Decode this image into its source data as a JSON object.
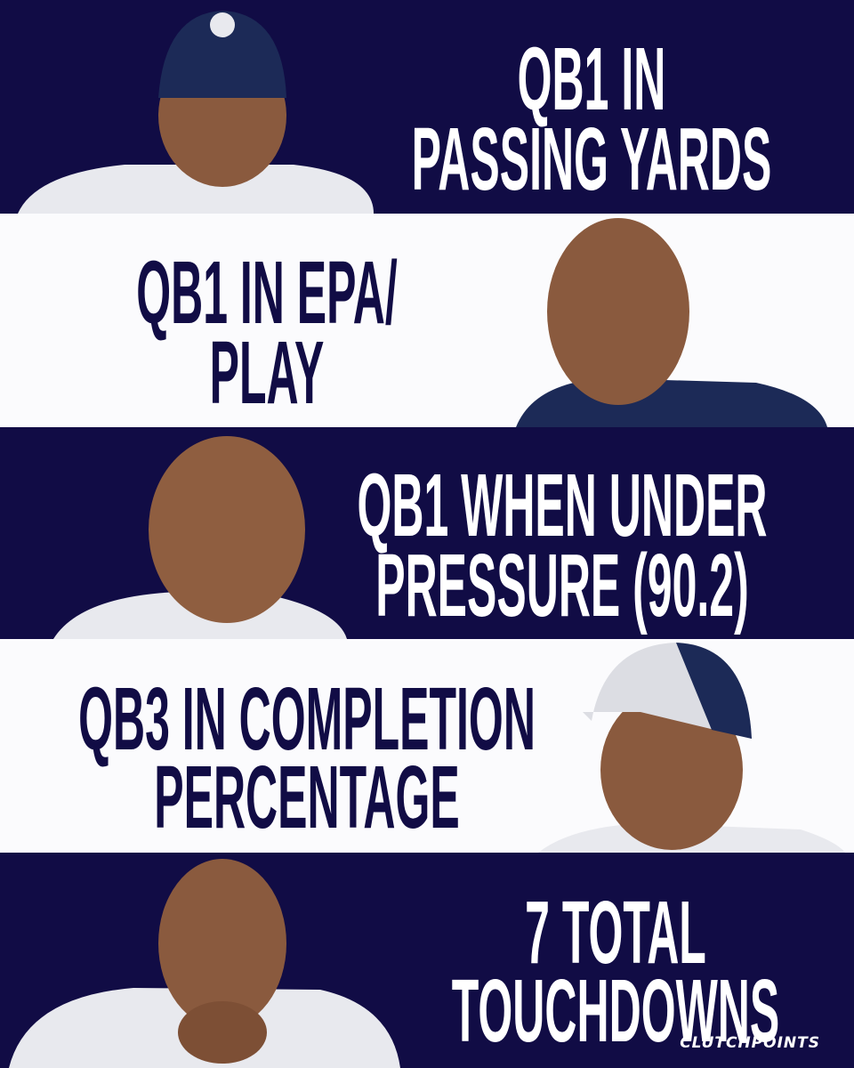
{
  "bands": [
    {
      "lines": [
        "QB1 IN",
        "PASSING YARDS"
      ]
    },
    {
      "lines": [
        "QB1 IN EPA/",
        "PLAY"
      ]
    },
    {
      "lines": [
        "QB1 WHEN UNDER",
        "PRESSURE (90.2)"
      ]
    },
    {
      "lines": [
        "QB3 IN COMPLETION",
        "PERCENTAGE"
      ]
    },
    {
      "lines": [
        "7 TOTAL",
        "TOUCHDOWNS"
      ]
    }
  ],
  "logo": "CLUTCHPOINTS"
}
